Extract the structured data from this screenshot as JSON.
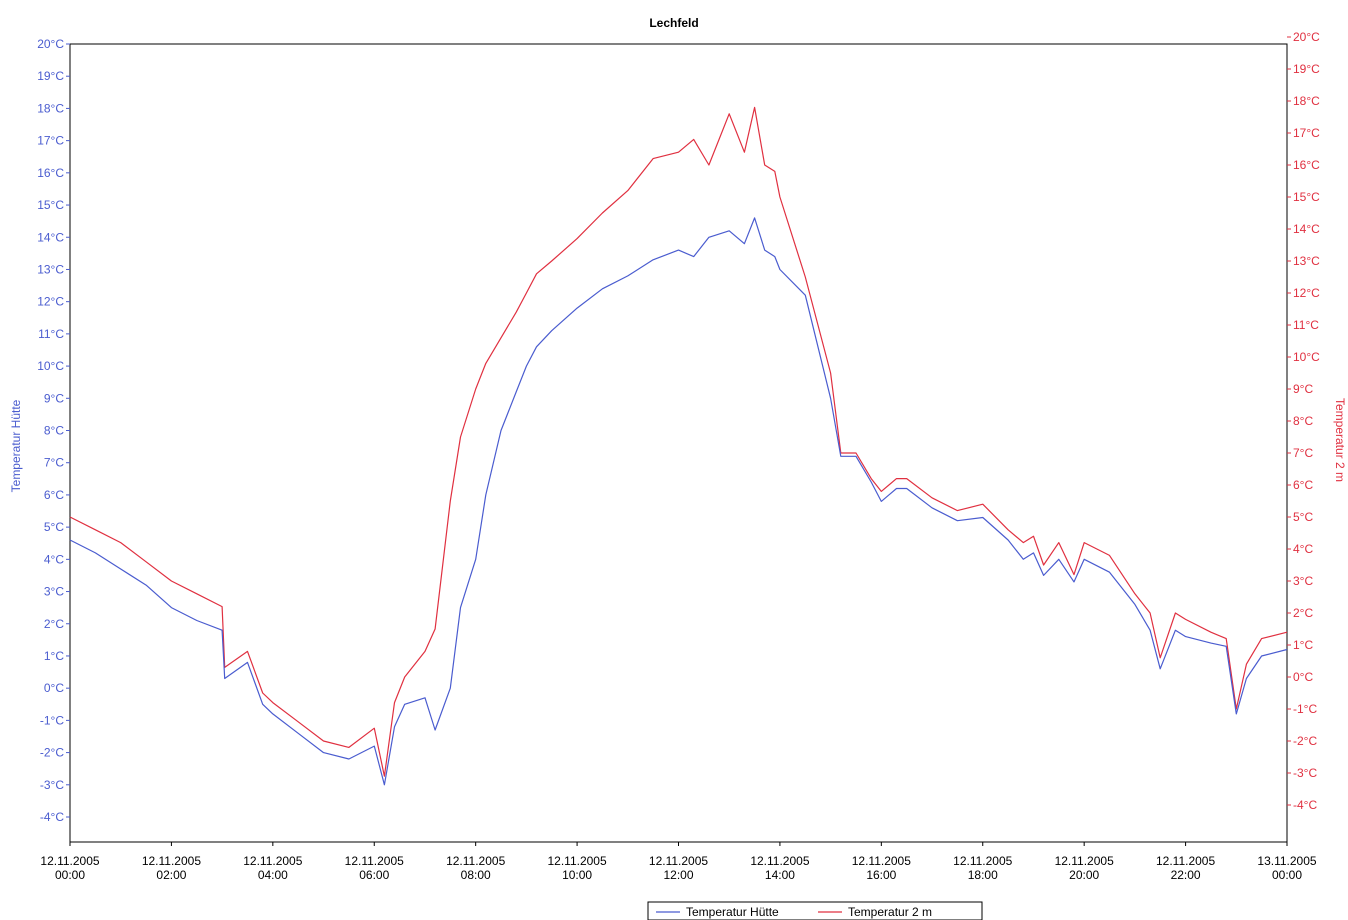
{
  "chart_data": {
    "type": "line",
    "title": "Lechfeld",
    "ylabel_left": "Temperatur Hütte",
    "ylabel_right": "Temperatur 2 m",
    "left_ticks": [
      "20°C",
      "19°C",
      "18°C",
      "17°C",
      "16°C",
      "15°C",
      "14°C",
      "13°C",
      "12°C",
      "11°C",
      "10°C",
      "9°C",
      "8°C",
      "7°C",
      "6°C",
      "5°C",
      "4°C",
      "3°C",
      "2°C",
      "1°C",
      "0°C",
      "-1°C",
      "-2°C",
      "-3°C",
      "-4°C"
    ],
    "right_ticks": [
      "20°C",
      "19°C",
      "18°C",
      "17°C",
      "16°C",
      "15°C",
      "14°C",
      "13°C",
      "12°C",
      "11°C",
      "10°C",
      "9°C",
      "8°C",
      "7°C",
      "6°C",
      "5°C",
      "4°C",
      "3°C",
      "2°C",
      "1°C",
      "0°C",
      "-1°C",
      "-2°C",
      "-3°C",
      "-4°C"
    ],
    "x_ticks": [
      {
        "date": "12.11.2005",
        "time": "00:00"
      },
      {
        "date": "12.11.2005",
        "time": "02:00"
      },
      {
        "date": "12.11.2005",
        "time": "04:00"
      },
      {
        "date": "12.11.2005",
        "time": "06:00"
      },
      {
        "date": "12.11.2005",
        "time": "08:00"
      },
      {
        "date": "12.11.2005",
        "time": "10:00"
      },
      {
        "date": "12.11.2005",
        "time": "12:00"
      },
      {
        "date": "12.11.2005",
        "time": "14:00"
      },
      {
        "date": "12.11.2005",
        "time": "16:00"
      },
      {
        "date": "12.11.2005",
        "time": "18:00"
      },
      {
        "date": "12.11.2005",
        "time": "20:00"
      },
      {
        "date": "12.11.2005",
        "time": "22:00"
      },
      {
        "date": "13.11.2005",
        "time": "00:00"
      }
    ],
    "ylim_left": [
      -5,
      20
    ],
    "ylim_right": [
      -5.5,
      20
    ],
    "xlim_hours": [
      0,
      24
    ],
    "grid": false,
    "legend_position": "bottom-center",
    "series": [
      {
        "name": "Temperatur Hütte",
        "color": "#4a5ccf",
        "axis": "left",
        "x": [
          0,
          0.5,
          1,
          1.5,
          2,
          2.5,
          3,
          3.05,
          3.5,
          3.8,
          4,
          4.5,
          5,
          5.5,
          6,
          6.2,
          6.4,
          6.6,
          7,
          7.2,
          7.5,
          7.7,
          8,
          8.2,
          8.5,
          8.8,
          9,
          9.2,
          9.5,
          10,
          10.5,
          11,
          11.5,
          12,
          12.3,
          12.6,
          13,
          13.3,
          13.5,
          13.7,
          13.9,
          14,
          14.5,
          15,
          15.2,
          15.5,
          15.8,
          16,
          16.3,
          16.5,
          17,
          17.5,
          18,
          18.5,
          18.8,
          19,
          19.2,
          19.5,
          19.8,
          20,
          20.5,
          21,
          21.3,
          21.5,
          21.8,
          22,
          22.5,
          22.8,
          23.0,
          23.2,
          23.5,
          24
        ],
        "values": [
          4.6,
          4.2,
          3.7,
          3.2,
          2.5,
          2.1,
          1.8,
          0.3,
          0.8,
          -0.5,
          -0.8,
          -1.4,
          -2.0,
          -2.2,
          -1.8,
          -3.0,
          -1.2,
          -0.5,
          -0.3,
          -1.3,
          0.0,
          2.5,
          4.0,
          6.0,
          8.0,
          9.2,
          10.0,
          10.6,
          11.1,
          11.8,
          12.4,
          12.8,
          13.3,
          13.6,
          13.4,
          14.0,
          14.2,
          13.8,
          14.6,
          13.6,
          13.4,
          13.0,
          12.2,
          9.0,
          7.2,
          7.2,
          6.4,
          5.8,
          6.2,
          6.2,
          5.6,
          5.2,
          5.3,
          4.6,
          4.0,
          4.2,
          3.5,
          4.0,
          3.3,
          4.0,
          3.6,
          2.6,
          1.8,
          0.6,
          1.8,
          1.6,
          1.4,
          1.3,
          -0.8,
          0.3,
          1.0,
          1.2
        ]
      },
      {
        "name": "Temperatur 2 m",
        "color": "#e03040",
        "axis": "right",
        "x": [
          0,
          0.5,
          1,
          1.5,
          2,
          2.5,
          3,
          3.05,
          3.5,
          3.8,
          4,
          4.5,
          5,
          5.5,
          6,
          6.2,
          6.4,
          6.6,
          7,
          7.2,
          7.5,
          7.7,
          8,
          8.2,
          8.5,
          8.8,
          9,
          9.2,
          9.5,
          10,
          10.5,
          11,
          11.5,
          12,
          12.3,
          12.6,
          13,
          13.3,
          13.5,
          13.7,
          13.9,
          14,
          14.5,
          15,
          15.2,
          15.5,
          15.8,
          16,
          16.3,
          16.5,
          17,
          17.5,
          18,
          18.5,
          18.8,
          19,
          19.2,
          19.5,
          19.8,
          20,
          20.5,
          21,
          21.3,
          21.5,
          21.8,
          22,
          22.5,
          22.8,
          23.0,
          23.2,
          23.5,
          24
        ],
        "values": [
          5.0,
          4.6,
          4.2,
          3.6,
          3.0,
          2.6,
          2.2,
          0.3,
          0.8,
          -0.5,
          -0.8,
          -1.4,
          -2.0,
          -2.2,
          -1.6,
          -3.1,
          -0.8,
          0.0,
          0.8,
          1.5,
          5.5,
          7.5,
          9.0,
          9.8,
          10.6,
          11.4,
          12.0,
          12.6,
          13.0,
          13.7,
          14.5,
          15.2,
          16.2,
          16.4,
          16.8,
          16.0,
          17.6,
          16.4,
          17.8,
          16.0,
          15.8,
          15.0,
          12.5,
          9.5,
          7.0,
          7.0,
          6.2,
          5.8,
          6.2,
          6.2,
          5.6,
          5.2,
          5.4,
          4.6,
          4.2,
          4.4,
          3.5,
          4.2,
          3.2,
          4.2,
          3.8,
          2.6,
          2.0,
          0.6,
          2.0,
          1.8,
          1.4,
          1.2,
          -1.0,
          0.4,
          1.2,
          1.4
        ]
      }
    ]
  }
}
